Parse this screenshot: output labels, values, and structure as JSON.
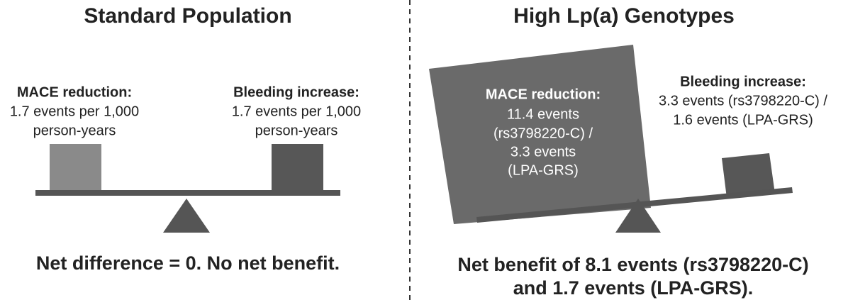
{
  "left": {
    "title": "Standard Population",
    "mace": {
      "heading": "MACE reduction:",
      "lines": [
        "1.7 events per 1,000",
        "person-years"
      ]
    },
    "bleeding": {
      "heading": "Bleeding increase:",
      "lines": [
        "1.7 events per 1,000",
        "person-years"
      ]
    },
    "footer": [
      "Net difference = 0. No net benefit."
    ]
  },
  "right": {
    "title": "High Lp(a) Genotypes",
    "mace": {
      "heading": "MACE reduction:",
      "lines": [
        "11.4 events",
        "(rs3798220-C) /",
        "3.3 events",
        "(LPA-GRS)"
      ]
    },
    "bleeding": {
      "heading": "Bleeding increase:",
      "lines": [
        "3.3 events (rs3798220-C) /",
        "1.6 events (LPA-GRS)"
      ]
    },
    "footer": [
      "Net benefit of 8.1 events (rs3798220-C)",
      "and 1.7 events (LPA-GRS)."
    ]
  }
}
